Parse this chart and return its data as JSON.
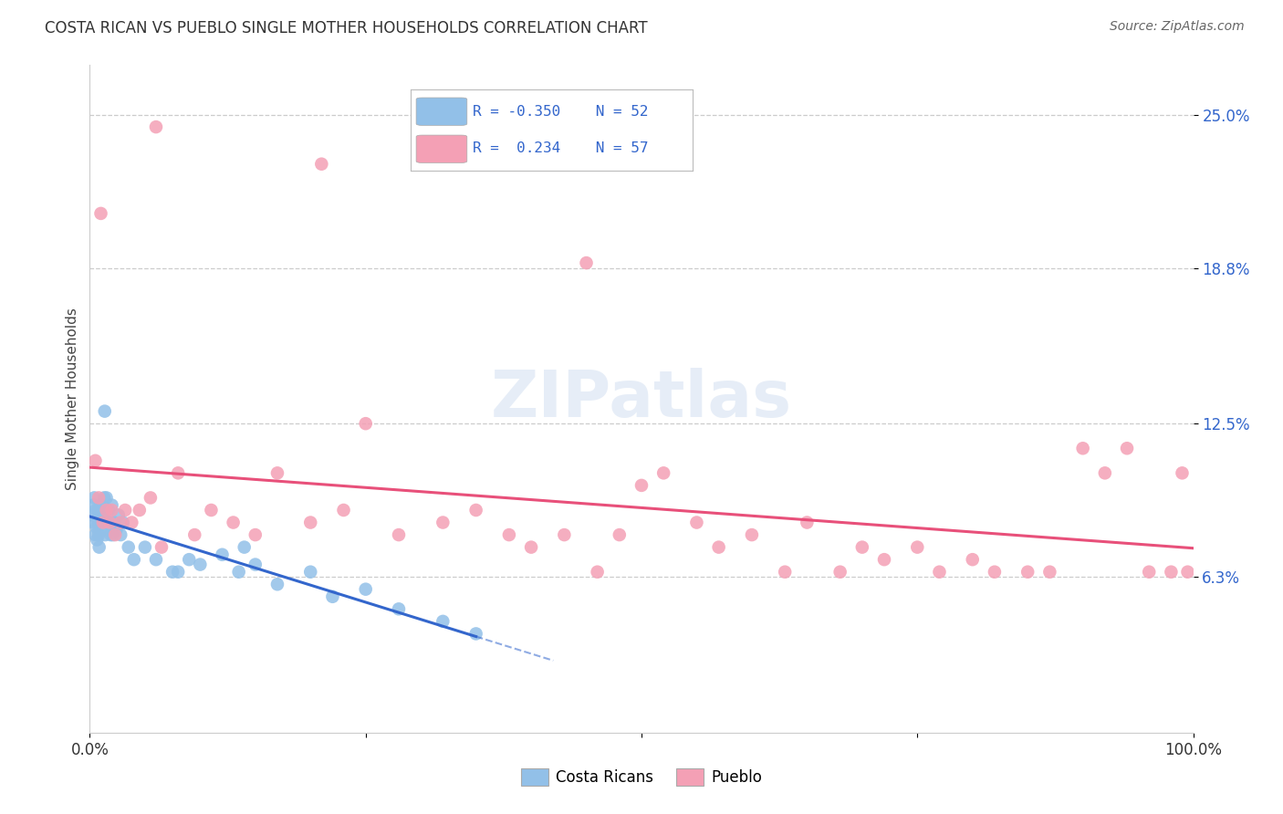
{
  "title": "COSTA RICAN VS PUEBLO SINGLE MOTHER HOUSEHOLDS CORRELATION CHART",
  "source": "Source: ZipAtlas.com",
  "ylabel": "Single Mother Households",
  "xlim": [
    0,
    100
  ],
  "ylim": [
    0,
    27
  ],
  "ytick_vals": [
    6.3,
    12.5,
    18.8,
    25.0
  ],
  "ytick_labels": [
    "6.3%",
    "12.5%",
    "18.8%",
    "25.0%"
  ],
  "blue_R": -0.35,
  "blue_N": 52,
  "pink_R": 0.234,
  "pink_N": 57,
  "blue_label": "Costa Ricans",
  "pink_label": "Pueblo",
  "blue_color": "#92C0E8",
  "pink_color": "#F4A0B5",
  "blue_line_color": "#3366CC",
  "pink_line_color": "#E8507A",
  "background_color": "#FFFFFF",
  "grid_color": "#CCCCCC",
  "blue_x": [
    0.2,
    0.3,
    0.35,
    0.4,
    0.5,
    0.55,
    0.6,
    0.65,
    0.7,
    0.75,
    0.8,
    0.85,
    0.9,
    1.0,
    1.05,
    1.1,
    1.15,
    1.2,
    1.3,
    1.35,
    1.4,
    1.5,
    1.6,
    1.7,
    1.8,
    1.9,
    2.0,
    2.1,
    2.2,
    2.4,
    2.6,
    2.8,
    3.0,
    3.5,
    4.0,
    5.0,
    6.0,
    7.5,
    8.0,
    9.0,
    10.0,
    12.0,
    13.5,
    14.0,
    15.0,
    17.0,
    20.0,
    22.0,
    25.0,
    28.0,
    32.0,
    35.0
  ],
  "blue_y": [
    8.8,
    9.2,
    8.5,
    9.5,
    8.0,
    9.0,
    8.3,
    7.8,
    8.5,
    9.0,
    8.0,
    7.5,
    8.8,
    9.2,
    8.5,
    8.8,
    9.0,
    8.2,
    9.5,
    13.0,
    8.0,
    9.5,
    8.5,
    9.0,
    8.5,
    8.0,
    9.2,
    8.0,
    8.5,
    8.2,
    8.8,
    8.0,
    8.5,
    7.5,
    7.0,
    7.5,
    7.0,
    6.5,
    6.5,
    7.0,
    6.8,
    7.2,
    6.5,
    7.5,
    6.8,
    6.0,
    6.5,
    5.5,
    5.8,
    5.0,
    4.5,
    4.0
  ],
  "pink_x": [
    0.5,
    0.8,
    1.2,
    1.5,
    1.8,
    2.0,
    2.3,
    2.8,
    3.2,
    3.8,
    4.5,
    5.5,
    6.5,
    8.0,
    9.5,
    11.0,
    13.0,
    15.0,
    17.0,
    20.0,
    23.0,
    25.0,
    28.0,
    32.0,
    35.0,
    38.0,
    40.0,
    43.0,
    46.0,
    48.0,
    50.0,
    52.0,
    55.0,
    57.0,
    60.0,
    63.0,
    65.0,
    68.0,
    70.0,
    72.0,
    75.0,
    77.0,
    80.0,
    82.0,
    85.0,
    87.0,
    90.0,
    92.0,
    94.0,
    96.0,
    98.0,
    99.0,
    99.5,
    1.0,
    6.0,
    21.0,
    45.0
  ],
  "pink_y": [
    11.0,
    9.5,
    8.5,
    9.0,
    8.5,
    9.0,
    8.0,
    8.5,
    9.0,
    8.5,
    9.0,
    9.5,
    7.5,
    10.5,
    8.0,
    9.0,
    8.5,
    8.0,
    10.5,
    8.5,
    9.0,
    12.5,
    8.0,
    8.5,
    9.0,
    8.0,
    7.5,
    8.0,
    6.5,
    8.0,
    10.0,
    10.5,
    8.5,
    7.5,
    8.0,
    6.5,
    8.5,
    6.5,
    7.5,
    7.0,
    7.5,
    6.5,
    7.0,
    6.5,
    6.5,
    6.5,
    11.5,
    10.5,
    11.5,
    6.5,
    6.5,
    10.5,
    6.5,
    21.0,
    24.5,
    23.0,
    19.0
  ]
}
